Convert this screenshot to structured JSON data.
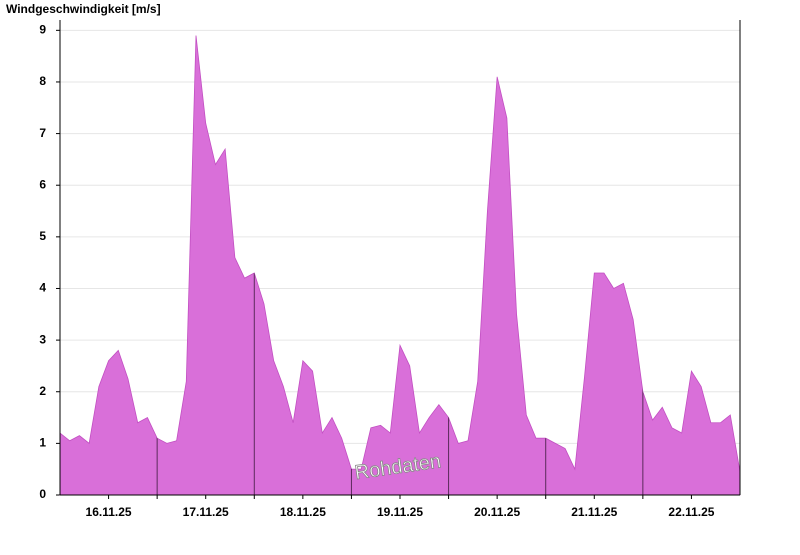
{
  "chart_data": {
    "type": "area",
    "title": "Windgeschwindigkeit [m/s]",
    "watermark": "Rohdaten",
    "x": [
      0,
      0.1,
      0.2,
      0.3,
      0.4,
      0.5,
      0.6,
      0.7,
      0.8,
      0.9,
      1,
      1.1,
      1.2,
      1.3,
      1.4,
      1.5,
      1.6,
      1.7,
      1.8,
      1.9,
      2,
      2.1,
      2.2,
      2.3,
      2.4,
      2.5,
      2.6,
      2.7,
      2.8,
      2.9,
      3,
      3.1,
      3.2,
      3.3,
      3.4,
      3.5,
      3.6,
      3.7,
      3.8,
      3.9,
      4,
      4.1,
      4.2,
      4.3,
      4.4,
      4.5,
      4.6,
      4.7,
      4.8,
      4.9,
      5,
      5.1,
      5.2,
      5.3,
      5.4,
      5.5,
      5.6,
      5.7,
      5.8,
      5.9,
      6,
      6.1,
      6.2,
      6.3,
      6.4,
      6.5,
      6.6,
      6.7,
      6.8,
      6.9,
      7
    ],
    "values": [
      1.2,
      1.05,
      1.15,
      1.0,
      2.1,
      2.6,
      2.8,
      2.25,
      1.4,
      1.5,
      1.1,
      1.0,
      1.05,
      2.2,
      8.9,
      7.2,
      6.4,
      6.7,
      4.6,
      4.2,
      4.3,
      3.7,
      2.6,
      2.1,
      1.4,
      2.6,
      2.4,
      1.2,
      1.5,
      1.1,
      0.5,
      0.5,
      1.3,
      1.35,
      1.2,
      2.9,
      2.5,
      1.2,
      1.5,
      1.75,
      1.5,
      1.0,
      1.05,
      2.2,
      5.5,
      8.1,
      7.3,
      3.5,
      1.55,
      1.1,
      1.1,
      1.0,
      0.9,
      0.5,
      2.3,
      4.3,
      4.3,
      4.0,
      4.1,
      3.4,
      2.0,
      1.45,
      1.7,
      1.3,
      1.2,
      2.4,
      2.1,
      1.4,
      1.4,
      1.55,
      0.45
    ],
    "color": "#d96fd9",
    "line_color": "#c24fc2",
    "xlim": [
      0,
      7
    ],
    "xticks": [
      {
        "value": 0.5,
        "label": "16.11.25"
      },
      {
        "value": 1.5,
        "label": "17.11.25"
      },
      {
        "value": 2.5,
        "label": "18.11.25"
      },
      {
        "value": 3.5,
        "label": "19.11.25"
      },
      {
        "value": 4.5,
        "label": "20.11.25"
      },
      {
        "value": 5.5,
        "label": "21.11.25"
      },
      {
        "value": 6.5,
        "label": "22.11.25"
      }
    ],
    "ylim": [
      0,
      9.2
    ],
    "yticks": [
      0,
      1,
      2,
      3,
      4,
      5,
      6,
      7,
      8,
      9
    ],
    "grid": true
  }
}
